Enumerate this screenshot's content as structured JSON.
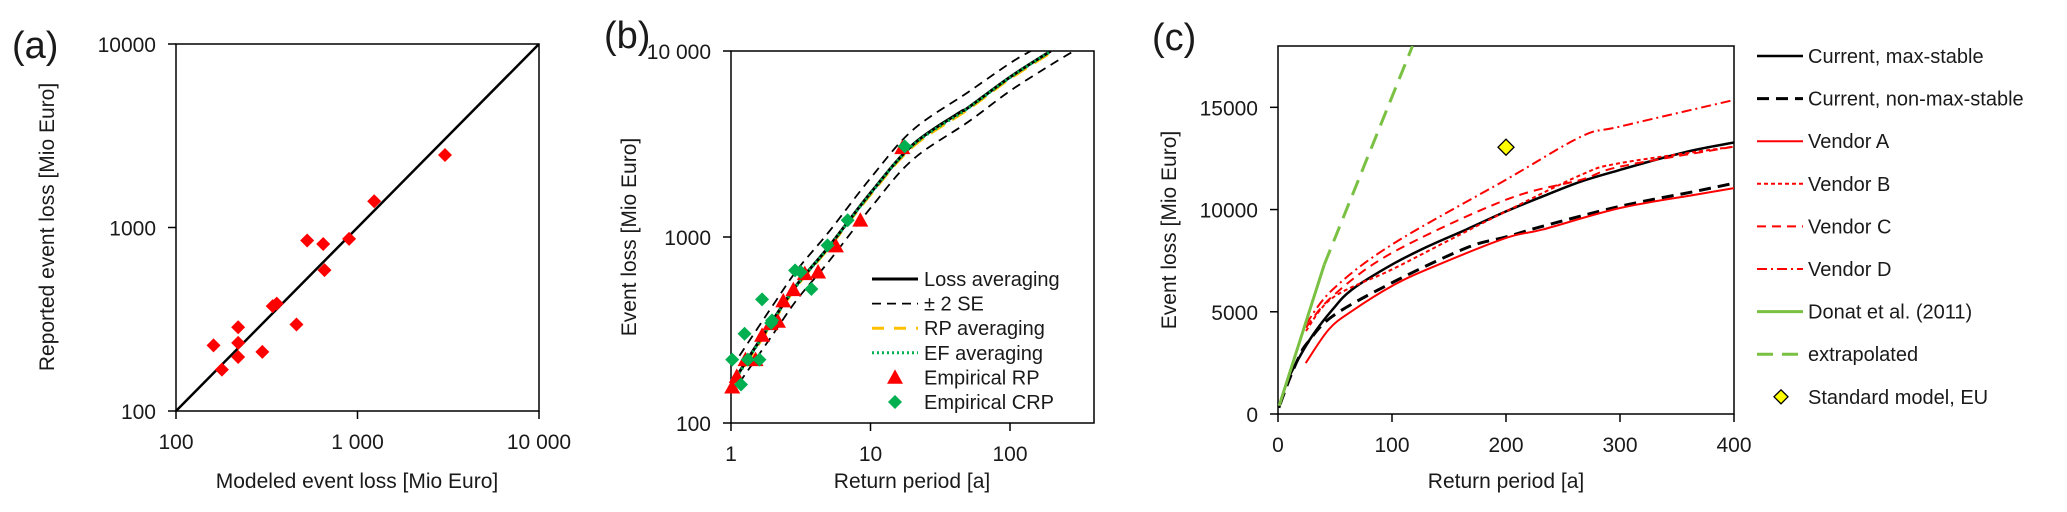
{
  "chart_data": [
    {
      "id": "a",
      "panel_label": "(a)",
      "type": "scatter",
      "xscale": "log",
      "yscale": "log",
      "xlabel": "Modeled event loss [Mio Euro]",
      "ylabel": "Reported event loss [Mio Euro]",
      "xlim": [
        100,
        10000
      ],
      "ylim": [
        100,
        10000
      ],
      "xticks": [
        {
          "v": 100,
          "label": "100"
        },
        {
          "v": 1000,
          "label": "1 000"
        },
        {
          "v": 10000,
          "label": "10 000"
        }
      ],
      "yticks": [
        {
          "v": 100,
          "label": "100"
        },
        {
          "v": 1000,
          "label": "1000"
        },
        {
          "v": 10000,
          "label": "10000"
        }
      ],
      "reference_line": {
        "name": "1:1 line",
        "from": [
          100,
          100
        ],
        "to": [
          10000,
          10000
        ],
        "color": "#000000"
      },
      "series": [
        {
          "name": "Events",
          "marker": "diamond",
          "color": "#ff0000",
          "points": [
            [
              161,
              228
            ],
            [
              179,
              168
            ],
            [
              220,
              286
            ],
            [
              220,
              235
            ],
            [
              220,
              197
            ],
            [
              299,
              210
            ],
            [
              341,
              373
            ],
            [
              359,
              385
            ],
            [
              461,
              296
            ],
            [
              528,
              849
            ],
            [
              647,
              813
            ],
            [
              658,
              586
            ],
            [
              899,
              867
            ],
            [
              1236,
              1390
            ],
            [
              3034,
              2483
            ]
          ]
        }
      ]
    },
    {
      "id": "b",
      "panel_label": "(b)",
      "type": "line",
      "xscale": "log",
      "yscale": "log",
      "xlabel": "Return period [a]",
      "ylabel": "Event loss [Mio Euro]",
      "xlim": [
        1,
        400
      ],
      "ylim": [
        100,
        10000
      ],
      "xticks": [
        {
          "v": 1,
          "label": "1"
        },
        {
          "v": 10,
          "label": "10"
        },
        {
          "v": 100,
          "label": "100"
        }
      ],
      "yticks": [
        {
          "v": 100,
          "label": "100"
        },
        {
          "v": 1000,
          "label": "1000"
        },
        {
          "v": 10000,
          "label": "10 000"
        }
      ],
      "legend_position": "bottom-right",
      "series": [
        {
          "name": "Loss averaging",
          "style": "solid",
          "color": "#000000",
          "points": [
            [
              1,
              160
            ],
            [
              2,
              358
            ],
            [
              3,
              560
            ],
            [
              5,
              883
            ],
            [
              10,
              1725
            ],
            [
              20,
              3125
            ],
            [
              43,
              4640
            ],
            [
              50,
              4950
            ],
            [
              100,
              7240
            ],
            [
              196,
              10000
            ]
          ]
        },
        {
          "name": "± 2 SE",
          "style": "dashed",
          "color": "#000000",
          "legend": true,
          "points": [
            [
              1.15,
              230
            ],
            [
              2,
              430
            ],
            [
              3,
              670
            ],
            [
              5,
              1060
            ],
            [
              10,
              2070
            ],
            [
              20,
              3750
            ],
            [
              50,
              6000
            ],
            [
              100,
              8600
            ],
            [
              141,
              10000
            ]
          ]
        },
        {
          "name": "± 2 SE (lower)",
          "style": "dashed",
          "color": "#000000",
          "legend": false,
          "points": [
            [
              1.15,
              165
            ],
            [
              2,
              300
            ],
            [
              3,
              465
            ],
            [
              5,
              735
            ],
            [
              10,
              1430
            ],
            [
              20,
              2600
            ],
            [
              50,
              4150
            ],
            [
              100,
              6100
            ],
            [
              200,
              8500
            ],
            [
              287,
              10000
            ]
          ]
        },
        {
          "name": "RP averaging",
          "style": "longdash",
          "color": "#ffc000",
          "points": [
            [
              1,
              155
            ],
            [
              2,
              350
            ],
            [
              3,
              550
            ],
            [
              5,
              870
            ],
            [
              10,
              1690
            ],
            [
              20,
              3050
            ],
            [
              50,
              4850
            ],
            [
              100,
              7100
            ],
            [
              205,
              10000
            ]
          ]
        },
        {
          "name": "EF averaging",
          "style": "dotted",
          "color": "#00b050",
          "points": [
            [
              1,
              158
            ],
            [
              2,
              355
            ],
            [
              3,
              556
            ],
            [
              5,
              878
            ],
            [
              10,
              1710
            ],
            [
              20,
              3100
            ],
            [
              50,
              4920
            ],
            [
              100,
              7200
            ],
            [
              198,
              10000
            ]
          ]
        }
      ],
      "scatter": [
        {
          "name": "Empirical RP",
          "marker": "triangle",
          "color": "#ff0000",
          "points": [
            [
              1.02,
              156
            ],
            [
              1.1,
              178
            ],
            [
              1.27,
              219
            ],
            [
              1.5,
              219
            ],
            [
              1.67,
              296
            ],
            [
              1.92,
              342
            ],
            [
              2.17,
              352
            ],
            [
              2.37,
              453
            ],
            [
              2.8,
              521
            ],
            [
              3.38,
              635
            ],
            [
              4.21,
              648
            ],
            [
              5.65,
              895
            ],
            [
              8.45,
              1230
            ],
            [
              16.9,
              3020
            ]
          ]
        },
        {
          "name": "Empirical CRP",
          "marker": "diamond",
          "color": "#00b050",
          "points": [
            [
              1.02,
              219
            ],
            [
              1.18,
              161
            ],
            [
              1.25,
              302
            ],
            [
              1.32,
              219
            ],
            [
              1.6,
              219
            ],
            [
              1.67,
              462
            ],
            [
              1.94,
              345
            ],
            [
              1.97,
              356
            ],
            [
              2.88,
              662
            ],
            [
              3.16,
              648
            ],
            [
              3.77,
              525
            ],
            [
              4.92,
              902
            ],
            [
              6.86,
              1230
            ],
            [
              17.6,
              3070
            ]
          ]
        }
      ]
    },
    {
      "id": "c",
      "panel_label": "(c)",
      "type": "line",
      "xscale": "linear",
      "yscale": "linear",
      "xlabel": "Return period [a]",
      "ylabel": "Event loss [Mio Euro]",
      "xlim": [
        0,
        400
      ],
      "ylim": [
        0,
        18000
      ],
      "xticks": [
        {
          "v": 0,
          "label": "0"
        },
        {
          "v": 100,
          "label": "100"
        },
        {
          "v": 200,
          "label": "200"
        },
        {
          "v": 300,
          "label": "300"
        },
        {
          "v": 400,
          "label": "400"
        }
      ],
      "yticks": [
        {
          "v": 0,
          "label": "0"
        },
        {
          "v": 5000,
          "label": "5000"
        },
        {
          "v": 10000,
          "label": "10000"
        },
        {
          "v": 15000,
          "label": "15000"
        }
      ],
      "legend_position": "right-outside",
      "series": [
        {
          "name": "Current, max-stable",
          "style": "solid",
          "color": "#000000",
          "width": 2.5,
          "points": [
            [
              1,
              300
            ],
            [
              7.7,
              1540
            ],
            [
              17.8,
              2680
            ],
            [
              31,
              3900
            ],
            [
              48,
              5120
            ],
            [
              65,
              6090
            ],
            [
              100,
              7310
            ],
            [
              132,
              8210
            ],
            [
              165,
              9020
            ],
            [
              200,
              9910
            ],
            [
              232,
              10640
            ],
            [
              266,
              11375
            ],
            [
              300,
              11940
            ],
            [
              333,
              12460
            ],
            [
              366,
              12920
            ],
            [
              400,
              13280
            ]
          ]
        },
        {
          "name": "Current, non-max-stable",
          "style": "dashed-bold",
          "color": "#000000",
          "width": 3,
          "points": [
            [
              2,
              500
            ],
            [
              10,
              1700
            ],
            [
              19,
              2860
            ],
            [
              26,
              3490
            ],
            [
              48,
              4790
            ],
            [
              100,
              6420
            ],
            [
              165,
              8120
            ],
            [
              200,
              8660
            ],
            [
              232,
              9180
            ],
            [
              300,
              10160
            ],
            [
              366,
              10890
            ],
            [
              400,
              11290
            ]
          ]
        },
        {
          "name": "Vendor A",
          "style": "solid",
          "color": "#ff0000",
          "width": 2,
          "points": [
            [
              24.3,
              2490
            ],
            [
              44.6,
              4140
            ],
            [
              65,
              5040
            ],
            [
              100,
              6260
            ],
            [
              132,
              7100
            ],
            [
              200,
              8610
            ],
            [
              232,
              9020
            ],
            [
              300,
              10075
            ],
            [
              366,
              10725
            ],
            [
              400,
              11050
            ]
          ]
        },
        {
          "name": "Vendor B",
          "style": "shortdash",
          "color": "#ff0000",
          "width": 2,
          "points": [
            [
              24.5,
              4060
            ],
            [
              48,
              5690
            ],
            [
              100,
              7070
            ],
            [
              150,
              8500
            ],
            [
              200,
              9910
            ],
            [
              266,
              11700
            ],
            [
              300,
              12270
            ],
            [
              400,
              13080
            ]
          ]
        },
        {
          "name": "Vendor C",
          "style": "dashed",
          "color": "#ff0000",
          "width": 2,
          "points": [
            [
              24.5,
              4225
            ],
            [
              48,
              5770
            ],
            [
              100,
              7880
            ],
            [
              200,
              10480
            ],
            [
              266,
              11460
            ],
            [
              300,
              12100
            ],
            [
              400,
              13080
            ]
          ]
        },
        {
          "name": "Vendor D",
          "style": "dashdot",
          "color": "#ff0000",
          "width": 2,
          "points": [
            [
              24.5,
              4390
            ],
            [
              48,
              6090
            ],
            [
              100,
              8290
            ],
            [
              200,
              11460
            ],
            [
              266,
              13570
            ],
            [
              300,
              14060
            ],
            [
              400,
              15360
            ]
          ]
        },
        {
          "name": "Donat et al. (2011)",
          "style": "solid",
          "color": "#7ac143",
          "width": 3,
          "points": [
            [
              1,
              400
            ],
            [
              40.6,
              7310
            ]
          ]
        },
        {
          "name": "extrapolated",
          "style": "longdash",
          "color": "#7ac143",
          "width": 3,
          "points": [
            [
              40.6,
              7310
            ],
            [
              118,
              18000
            ]
          ]
        }
      ],
      "scatter": [
        {
          "name": "Standard model, EU",
          "marker": "diamond",
          "color": "#ffff00",
          "edge": "#000000",
          "points": [
            [
              200,
              13050
            ]
          ]
        }
      ]
    }
  ]
}
